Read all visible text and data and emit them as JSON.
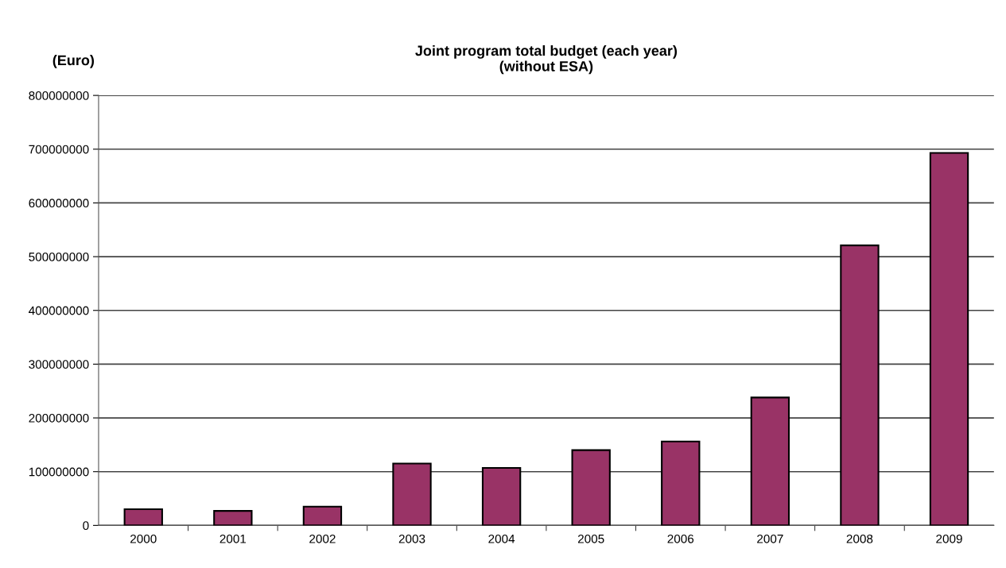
{
  "chart_data": {
    "type": "bar",
    "title": "Joint program total budget (each year)\n(without ESA)",
    "ylabel": "(Euro)",
    "categories": [
      "2000",
      "2001",
      "2002",
      "2003",
      "2004",
      "2005",
      "2006",
      "2007",
      "2008",
      "2009"
    ],
    "values": [
      30000000,
      27000000,
      35000000,
      115000000,
      107000000,
      140000000,
      156000000,
      238000000,
      521000000,
      693000000
    ],
    "color": "#993366",
    "ylim": [
      0,
      800000000
    ],
    "yticks": [
      0,
      100000000,
      200000000,
      300000000,
      400000000,
      500000000,
      600000000,
      700000000,
      800000000
    ],
    "grid": "y"
  }
}
